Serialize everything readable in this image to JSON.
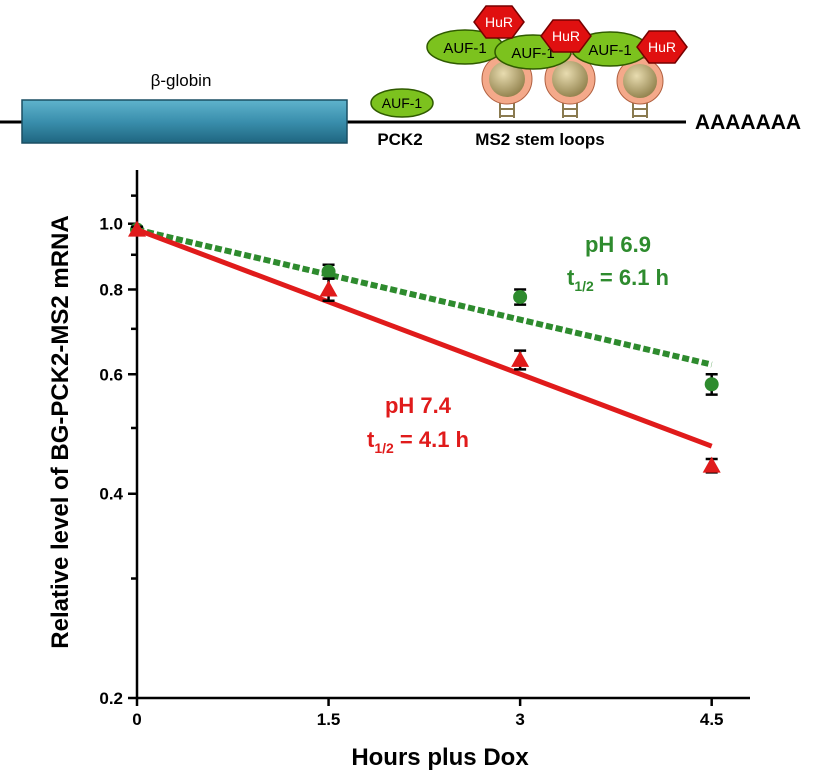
{
  "diagram": {
    "gene": "β-globin",
    "pck2": "PCK2",
    "stem_loops": "MS2 stem loops",
    "polya": "AAAAAAA",
    "auf1": [
      "AUF-1",
      "AUF-1",
      "AUF-1",
      "AUF-1"
    ],
    "hur": [
      "HuR",
      "HuR",
      "HuR"
    ]
  },
  "chart_data": {
    "type": "line",
    "log_y": true,
    "xlabel": "Hours plus Dox",
    "ylabel": "Relative level of BG-PCK2-MS2 mRNA",
    "x": [
      0,
      1.5,
      3,
      4.5
    ],
    "xlim": [
      0,
      4.8
    ],
    "xticks": [
      0,
      1.5,
      3,
      4.5
    ],
    "ylim": [
      0.2,
      1.2
    ],
    "yticks": [
      0.2,
      0.4,
      0.6,
      0.8,
      {
        "value": 1,
        "label": "1.0"
      }
    ],
    "yminor_ticks": [
      0.3,
      0.5,
      0.7,
      0.9,
      1.1
    ],
    "series": [
      {
        "color": "#2e8b2e",
        "marker": "circle",
        "line_style": "dashed",
        "values": [
          0.98,
          0.85,
          0.78,
          0.58
        ],
        "errors": [
          0.01,
          0.02,
          0.02,
          0.02
        ],
        "fit": {
          "x": [
            0,
            4.5
          ],
          "values": [
            0.98,
            0.62
          ]
        },
        "annotation": {
          "title": "pH 6.9",
          "t": "t",
          "sub": "1/2",
          "rest": " = 6.1 h"
        }
      },
      {
        "color": "#e01b1b",
        "marker": "triangle",
        "line_style": "solid",
        "values": [
          0.98,
          0.8,
          0.63,
          0.44
        ],
        "errors": [
          0.01,
          0.03,
          0.02,
          0.01
        ],
        "fit": {
          "x": [
            0,
            4.5
          ],
          "values": [
            0.98,
            0.47
          ]
        },
        "annotation": {
          "title": "pH 7.4",
          "t": "t",
          "sub": "1/2",
          "rest": " = 4.1 h"
        }
      }
    ]
  }
}
